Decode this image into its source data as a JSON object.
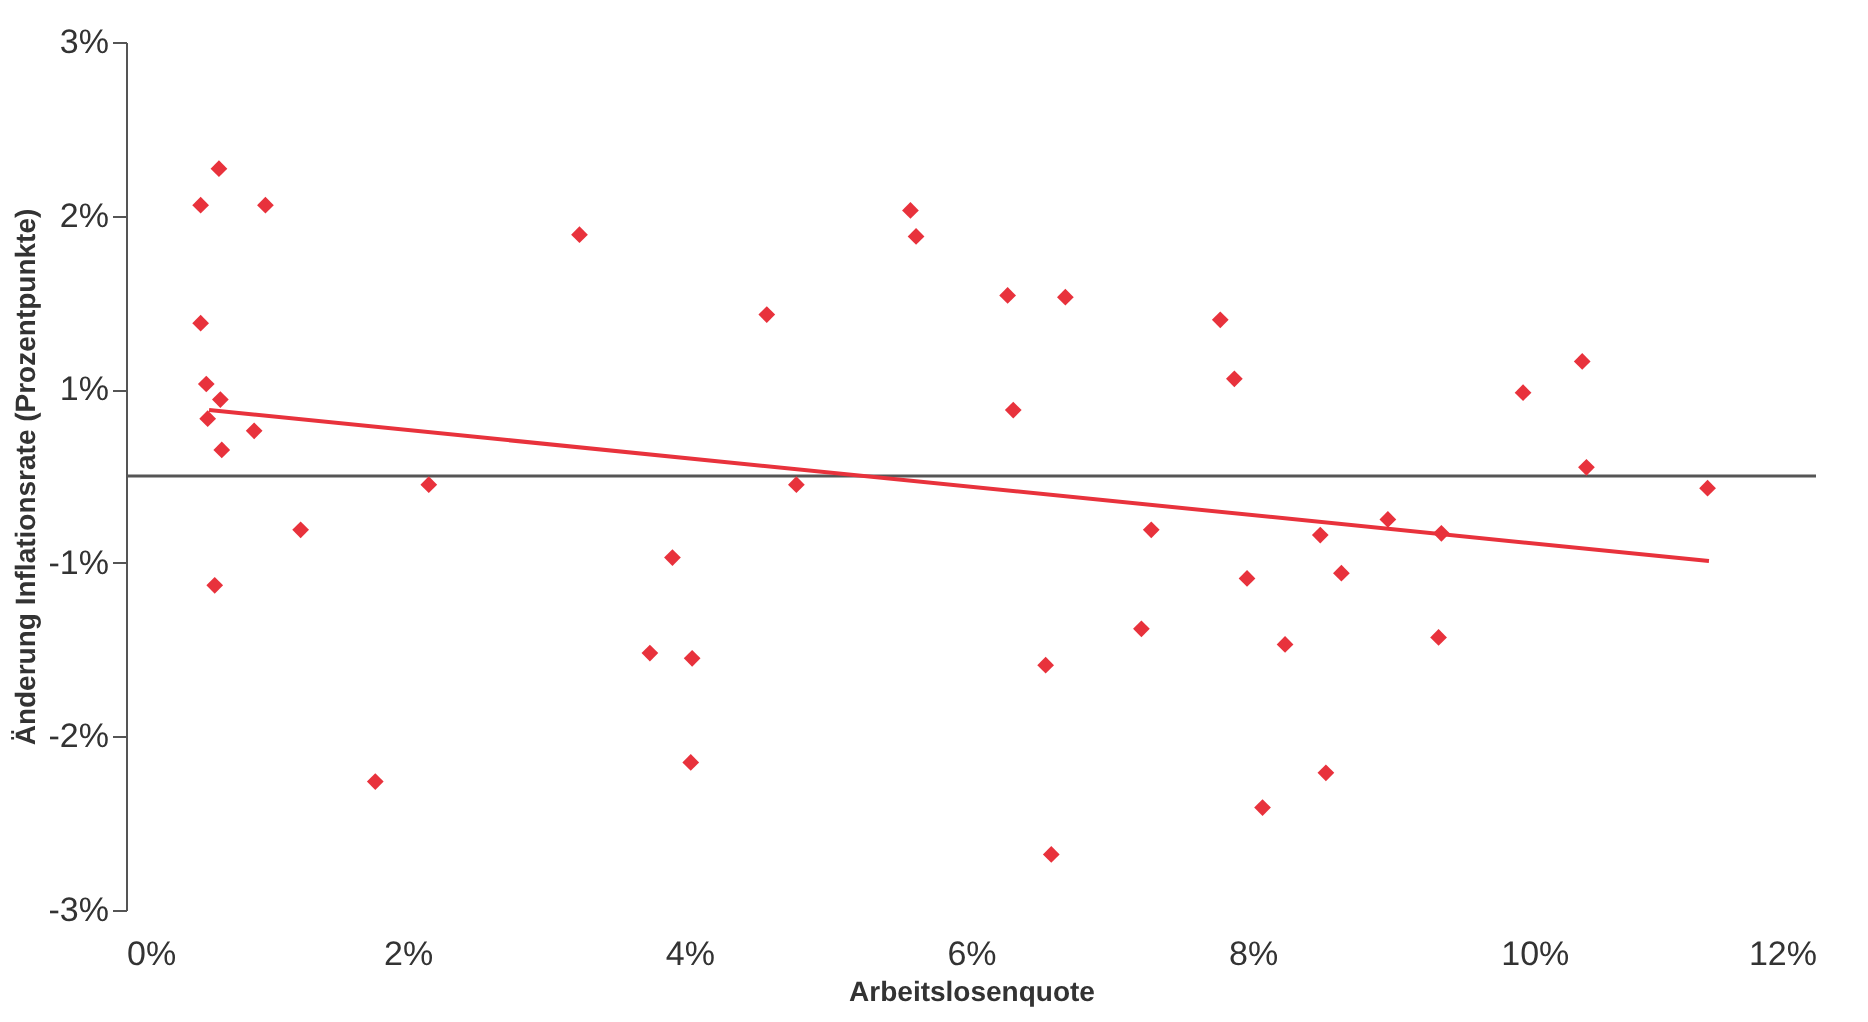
{
  "chart_data": {
    "type": "scatter",
    "xlabel": "Arbeitslosenquote",
    "ylabel": "Änderung Inflationsrate (Prozentpunkte)",
    "xlim": [
      0,
      12
    ],
    "ylim": [
      -2.5,
      2.5
    ],
    "xticks": [
      {
        "value": 0,
        "label": "0%"
      },
      {
        "value": 2,
        "label": "2%"
      },
      {
        "value": 4,
        "label": "4%"
      },
      {
        "value": 6,
        "label": "6%"
      },
      {
        "value": 8,
        "label": "8%"
      },
      {
        "value": 10,
        "label": "10%"
      },
      {
        "value": 12,
        "label": "12%"
      }
    ],
    "yticks": [
      {
        "value": 2.5,
        "label": "3%"
      },
      {
        "value": 1.5,
        "label": "2%"
      },
      {
        "value": 0.5,
        "label": "1%"
      },
      {
        "value": -0.5,
        "label": "-1%"
      },
      {
        "value": -1.5,
        "label": "-2%"
      },
      {
        "value": -2.5,
        "label": "-3%"
      }
    ],
    "grid": false,
    "marker": "diamond",
    "ref_lines": [
      {
        "axis": "y",
        "value": 0,
        "color": "#555555"
      }
    ],
    "series": [
      {
        "type": "scatter",
        "color": "#e8323c",
        "x": [
          0.66,
          0.53,
          0.99,
          3.22,
          5.57,
          5.61,
          4.55,
          0.53,
          0.57,
          0.67,
          0.58,
          0.91,
          0.68,
          2.15,
          4.76,
          1.24,
          0.63,
          3.88,
          3.72,
          4.02,
          4.01,
          1.77,
          6.26,
          6.67,
          7.77,
          7.87,
          6.3,
          9.92,
          10.34,
          10.37,
          11.23,
          7.28,
          8.48,
          8.96,
          9.34,
          7.96,
          8.63,
          7.21,
          8.23,
          9.32,
          6.53,
          8.52,
          8.07,
          6.57
        ],
        "values": [
          1.77,
          1.56,
          1.56,
          1.39,
          1.53,
          1.38,
          0.93,
          0.88,
          0.53,
          0.44,
          0.33,
          0.26,
          0.15,
          -0.05,
          -0.05,
          -0.31,
          -0.63,
          -0.47,
          -1.02,
          -1.05,
          -1.65,
          -1.76,
          1.04,
          1.03,
          0.9,
          0.56,
          0.38,
          0.48,
          0.66,
          0.05,
          -0.07,
          -0.31,
          -0.34,
          -0.25,
          -0.33,
          -0.59,
          -0.56,
          -0.88,
          -0.97,
          -0.93,
          -1.09,
          -1.71,
          -1.91,
          -2.18
        ]
      },
      {
        "type": "line",
        "marker": "none",
        "line_style": "solid",
        "color": "#e8323c",
        "x": [
          0.59,
          11.24
        ],
        "values": [
          0.38,
          -0.49
        ]
      }
    ]
  }
}
